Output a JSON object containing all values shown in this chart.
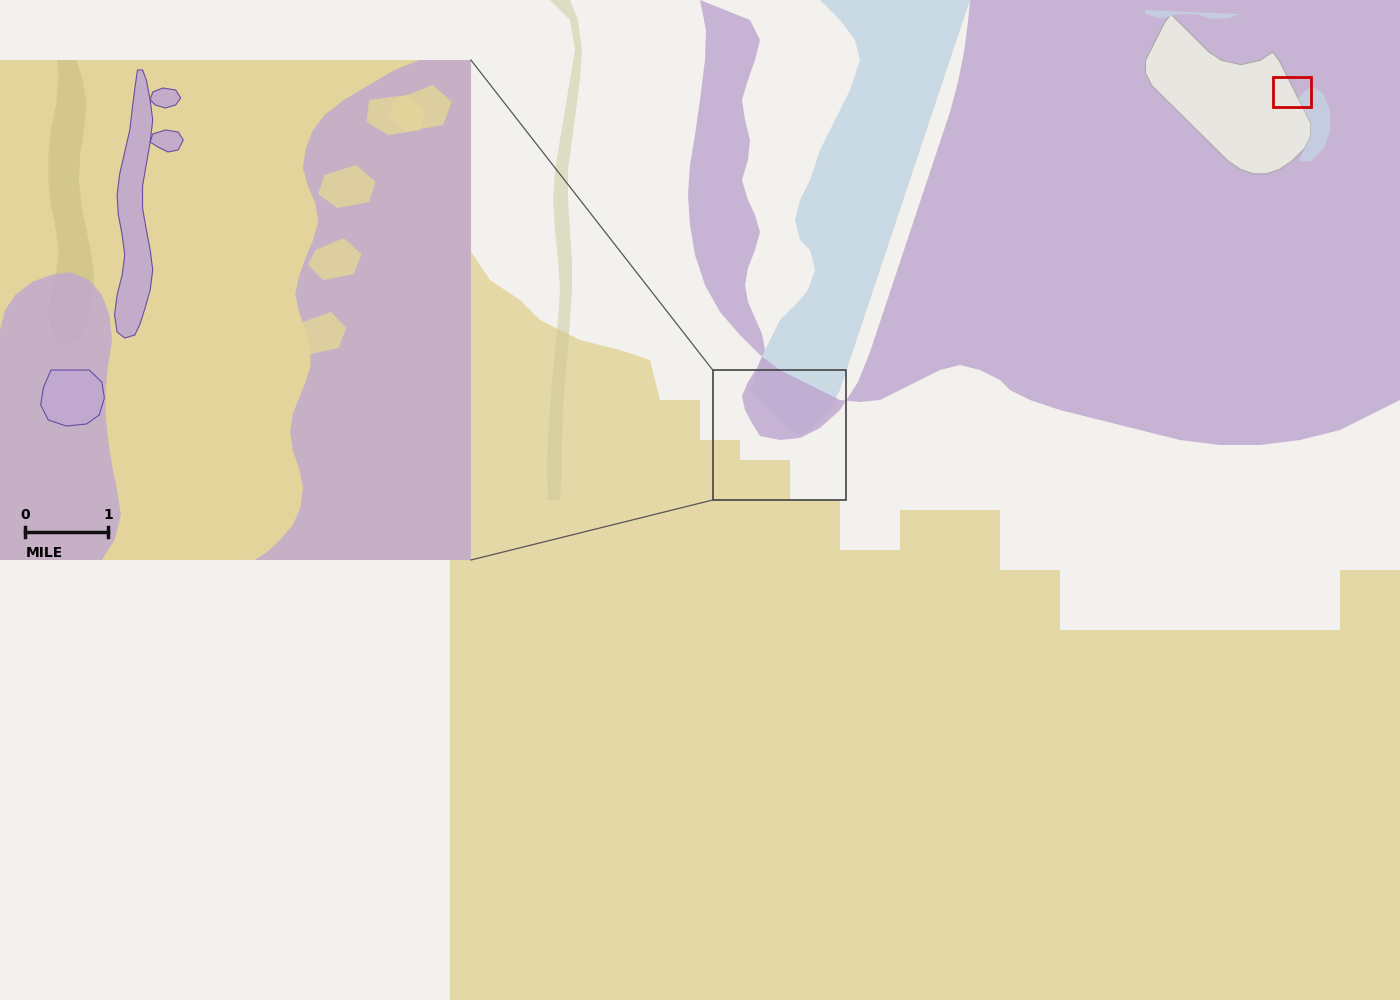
{
  "fig_bg": "#e8e8e8",
  "main_bg": "#f0efed",
  "water_color": "#c5d8e5",
  "purple_color": "#c0a8d0",
  "orange_color": "#e2d49a",
  "purple_outline": "#6040a0",
  "inset_bg": "#e2d49a",
  "wi_bg": "#f2f2f2",
  "wi_outline": "#bbbbbb",
  "red_box_color": "#cc0000",
  "connector_color": "#555555",
  "inset_box_color": "#444444",
  "scale_line_color": "#111111",
  "shadow_gray": "#aaaaaa",
  "bottom_white": "#e0e0e0",
  "green_area": "#c8c8a0",
  "figure_width": 14.0,
  "figure_height": 10.0,
  "dpi": 100
}
